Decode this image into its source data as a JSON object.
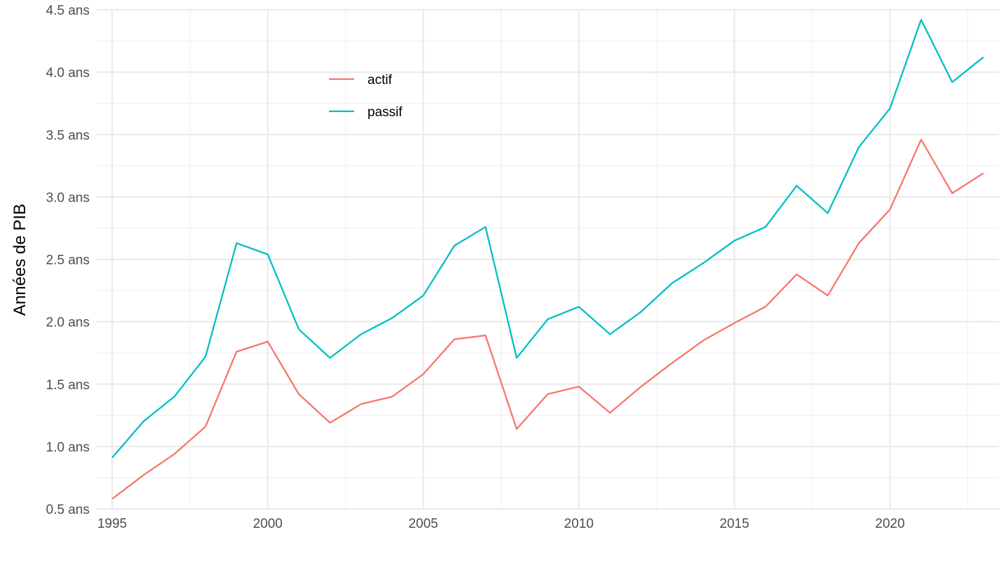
{
  "chart_data": {
    "type": "line",
    "title": "",
    "xlabel": "",
    "ylabel": "Années de PIB",
    "y_tick_suffix": " ans",
    "xlim": [
      1994.5,
      2023.5
    ],
    "ylim": [
      0.5,
      4.5
    ],
    "x_ticks": [
      "1995",
      "2000",
      "2005",
      "2010",
      "2015",
      "2020"
    ],
    "y_ticks": [
      "0.5 ans",
      "1.0 ans",
      "1.5 ans",
      "2.0 ans",
      "2.5 ans",
      "3.0 ans",
      "3.5 ans",
      "4.0 ans",
      "4.5 ans"
    ],
    "grid": true,
    "legend_position": "inside-top-left",
    "x": [
      1995,
      1996,
      1997,
      1998,
      1999,
      2000,
      2001,
      2002,
      2003,
      2004,
      2005,
      2006,
      2007,
      2008,
      2009,
      2010,
      2011,
      2012,
      2013,
      2014,
      2015,
      2016,
      2017,
      2018,
      2019,
      2020,
      2021,
      2022,
      2023
    ],
    "series": [
      {
        "name": "actif",
        "color": "#F8766D",
        "values": [
          0.58,
          0.77,
          0.94,
          1.16,
          1.76,
          1.84,
          1.42,
          1.19,
          1.34,
          1.4,
          1.58,
          1.86,
          1.89,
          1.14,
          1.42,
          1.48,
          1.27,
          1.48,
          1.67,
          1.85,
          1.99,
          2.12,
          2.38,
          2.21,
          2.63,
          2.9,
          3.46,
          3.03,
          3.19
        ]
      },
      {
        "name": "passif",
        "color": "#00BFC4",
        "values": [
          0.91,
          1.2,
          1.4,
          1.72,
          2.63,
          2.54,
          1.94,
          1.71,
          1.9,
          2.03,
          2.21,
          2.61,
          2.76,
          1.71,
          2.02,
          2.12,
          1.9,
          2.08,
          2.31,
          2.47,
          2.65,
          2.76,
          3.09,
          2.87,
          3.4,
          3.71,
          4.42,
          3.92,
          4.12
        ]
      }
    ]
  }
}
